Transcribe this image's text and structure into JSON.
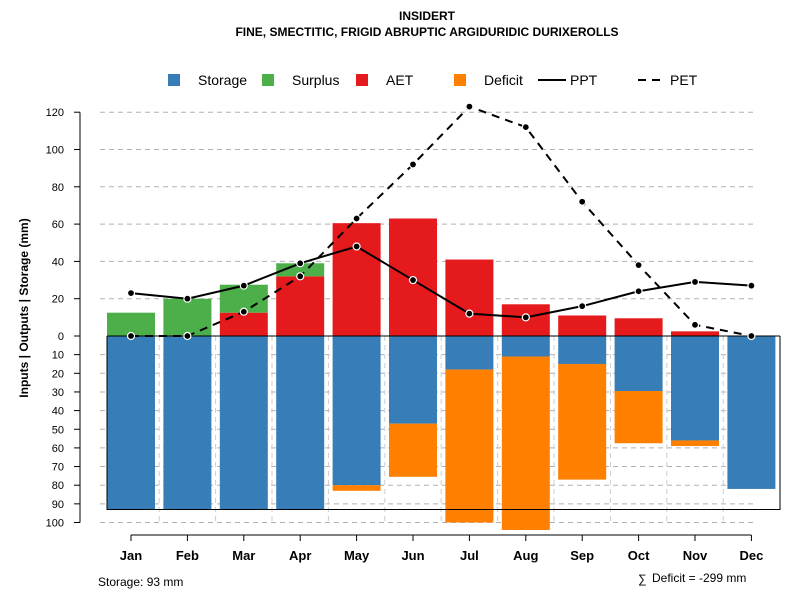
{
  "chart_data": {
    "type": "bar",
    "title": "INSIDERT",
    "subtitle": "FINE, SMECTITIC, FRIGID ABRUPTIC ARGIDURIDIC DURIXEROLLS",
    "ylabel": "Inputs | Outputs | Storage    (mm)",
    "categories": [
      "Jan",
      "Feb",
      "Mar",
      "Apr",
      "May",
      "Jun",
      "Jul",
      "Aug",
      "Sep",
      "Oct",
      "Nov",
      "Dec"
    ],
    "ylim": [
      -100,
      120
    ],
    "y_ticks_positive": [
      0,
      20,
      40,
      60,
      80,
      100,
      120
    ],
    "y_ticks_negative": [
      10,
      20,
      30,
      40,
      50,
      60,
      70,
      80,
      90,
      100
    ],
    "grid": true,
    "legend": {
      "placement": "top",
      "entries": [
        {
          "label": "Storage",
          "symbol": "square",
          "color": "#377EB8"
        },
        {
          "label": "Surplus",
          "symbol": "square",
          "color": "#4DAF4A"
        },
        {
          "label": "AET",
          "symbol": "square",
          "color": "#E41A1C"
        },
        {
          "label": "Deficit",
          "symbol": "square",
          "color": "#FF7F00"
        },
        {
          "label": "PPT",
          "symbol": "solid-line",
          "color": "#000000"
        },
        {
          "label": "PET",
          "symbol": "dashed-line",
          "color": "#000000"
        }
      ]
    },
    "series": [
      {
        "name": "AET",
        "color": "#E41A1C",
        "values": [
          0,
          0,
          12.5,
          32,
          60.5,
          63,
          41,
          17,
          11,
          9.5,
          2.5,
          0
        ]
      },
      {
        "name": "Surplus",
        "color": "#4DAF4A",
        "values": [
          12.5,
          20,
          15,
          7,
          0,
          0,
          0,
          0,
          0,
          0,
          0,
          0
        ]
      },
      {
        "name": "Storage",
        "color": "#377EB8",
        "values": [
          93,
          93,
          93,
          93,
          80,
          47,
          18,
          11,
          15,
          29.5,
          56,
          82
        ]
      },
      {
        "name": "Deficit",
        "color": "#FF7F00",
        "values": [
          0,
          0,
          0,
          0,
          3,
          28.5,
          82,
          93,
          62,
          28,
          3,
          0
        ]
      },
      {
        "name": "PPT",
        "color": "#000000",
        "style": "solid",
        "values": [
          23,
          20,
          27,
          39,
          48,
          30,
          12,
          10,
          16,
          24,
          29,
          27
        ]
      },
      {
        "name": "PET",
        "color": "#000000",
        "style": "dashed",
        "values": [
          0,
          0,
          13,
          32,
          63,
          92,
          123,
          112,
          72,
          38,
          6,
          0
        ]
      }
    ],
    "storage_capacity": 93,
    "annotations": {
      "storage": "Storage: 93 mm",
      "deficit_symbol": "∑",
      "deficit": "Deficit = -299 mm"
    }
  }
}
